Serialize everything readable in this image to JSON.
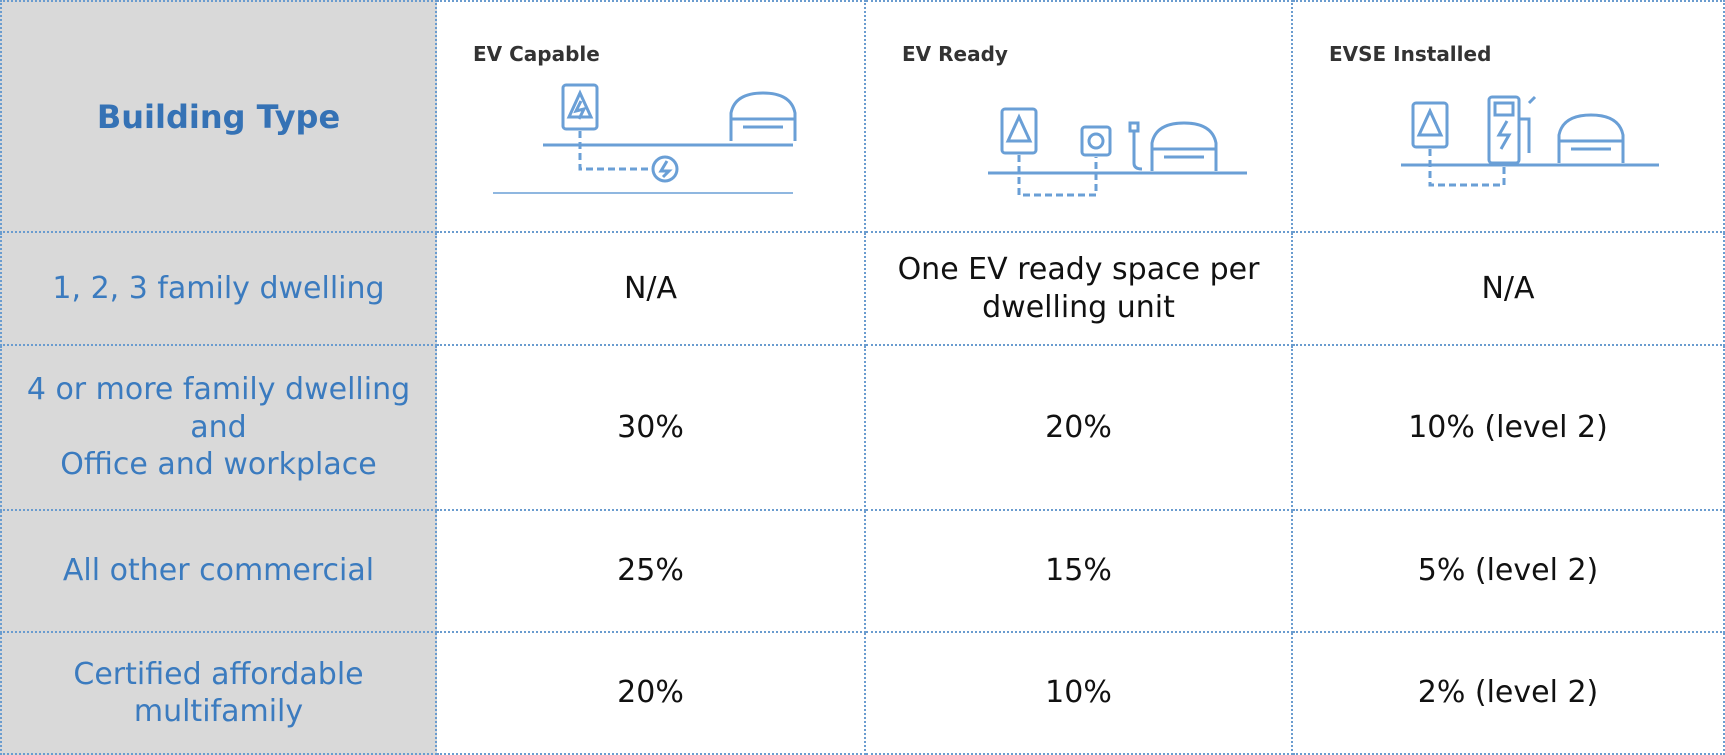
{
  "header": {
    "building_type": "Building Type",
    "columns": [
      "EV Capable",
      "EV Ready",
      "EVSE Installed"
    ]
  },
  "table": {
    "rows": [
      {
        "building_type": "1, 2, 3 family dwelling",
        "cells": [
          "N/A",
          "One EV ready space per dwelling unit",
          "N/A"
        ]
      },
      {
        "building_type": [
          "4 or more family dwelling and",
          "Office and workplace"
        ],
        "cells": [
          "30%",
          "20%",
          "10% (level 2)"
        ]
      },
      {
        "building_type": "All other commercial",
        "cells": [
          "25%",
          "15%",
          "5% (level 2)"
        ]
      },
      {
        "building_type": "Certified affordable multifamily",
        "cells": [
          "20%",
          "10%",
          "2% (level 2)"
        ]
      }
    ]
  }
}
